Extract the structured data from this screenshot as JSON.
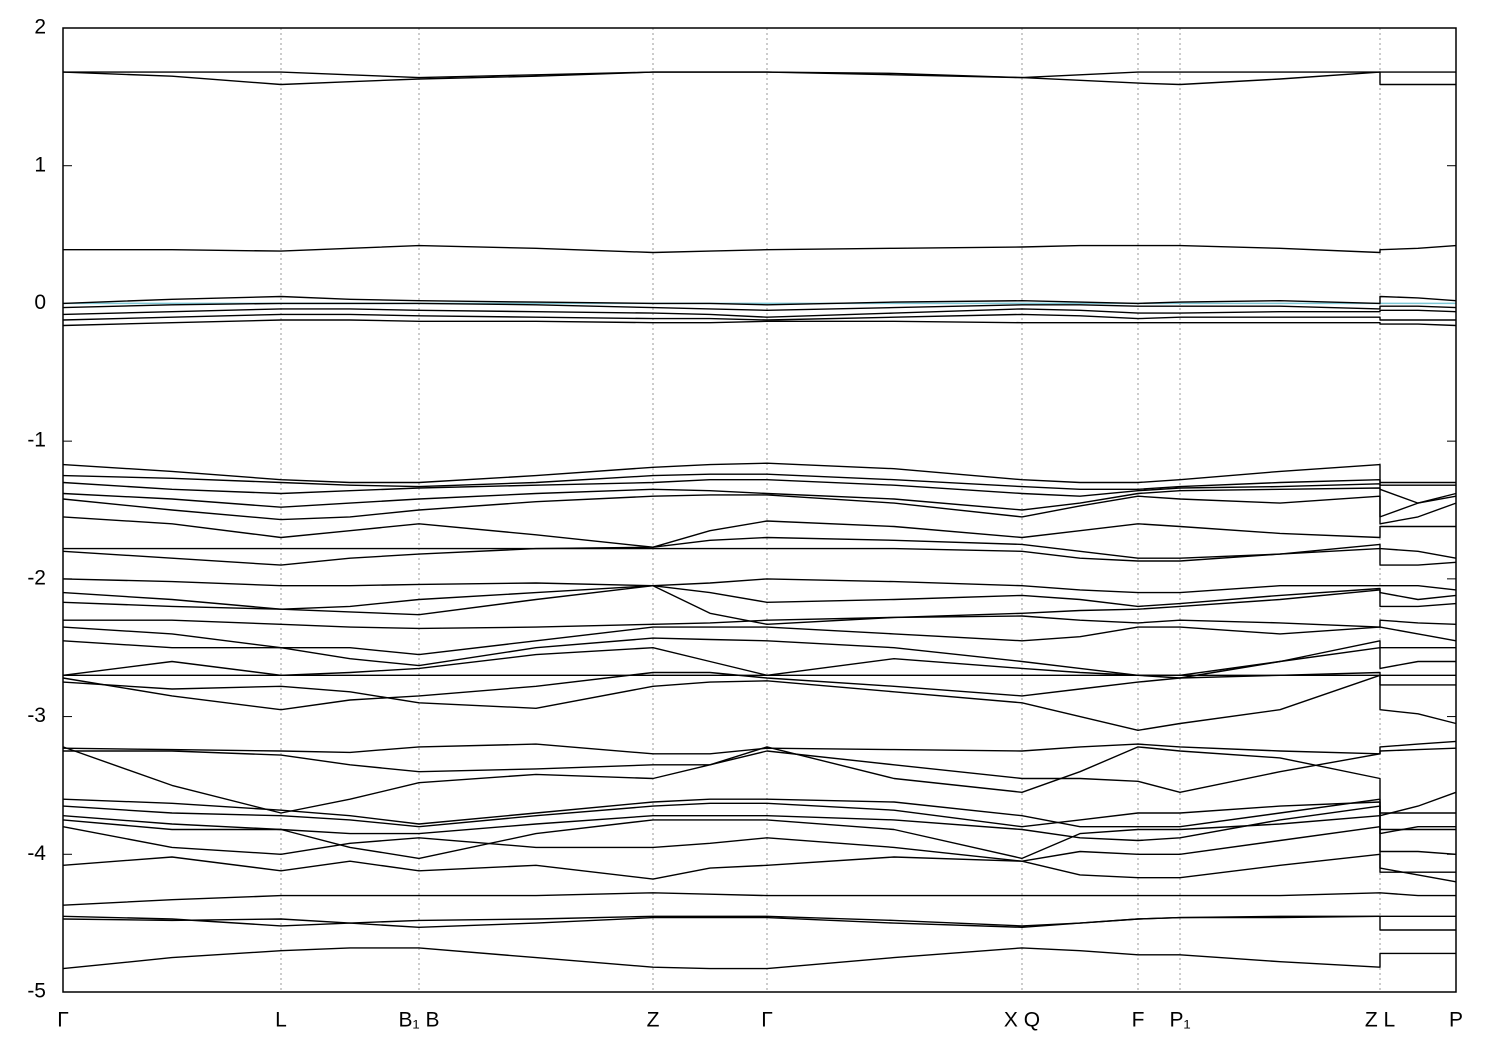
{
  "chart_data": {
    "type": "line",
    "xlim": [
      0,
      1393
    ],
    "xticks": [
      {
        "value": 0,
        "label": "Γ"
      },
      {
        "value": 218,
        "label": "L"
      },
      {
        "value": 356,
        "label": "B₁ B"
      },
      {
        "value": 590,
        "label": "Z"
      },
      {
        "value": 704,
        "label": "Γ"
      },
      {
        "value": 959,
        "label": "X Q"
      },
      {
        "value": 1075,
        "label": "F"
      },
      {
        "value": 1117,
        "label": "P₁"
      },
      {
        "value": 1317,
        "label": "Z L"
      },
      {
        "value": 1393,
        "label": "P"
      }
    ],
    "ylim": [
      -5,
      2
    ],
    "yticks": [
      -5,
      -4,
      -3,
      -2,
      -1,
      0,
      1,
      2
    ],
    "grid": "x",
    "color": "#000000",
    "fermi_level": 0,
    "fermi_color": "#7ec8d6",
    "x": [
      0,
      109,
      218,
      287,
      356,
      473,
      590,
      647,
      704,
      831,
      959,
      1017,
      1075,
      1117,
      1217,
      1317,
      1317,
      1355,
      1393
    ],
    "series": [
      {
        "values": [
          1.68,
          1.68,
          1.68,
          1.66,
          1.64,
          1.66,
          1.68,
          1.68,
          1.68,
          1.67,
          1.64,
          1.66,
          1.68,
          1.68,
          1.68,
          1.68,
          1.68,
          1.68,
          1.68
        ]
      },
      {
        "values": [
          1.68,
          1.65,
          1.59,
          1.61,
          1.63,
          1.65,
          1.68,
          1.68,
          1.68,
          1.66,
          1.64,
          1.62,
          1.6,
          1.59,
          1.63,
          1.68,
          1.59,
          1.59,
          1.59
        ]
      },
      {
        "values": [
          0.39,
          0.39,
          0.38,
          0.4,
          0.42,
          0.4,
          0.37,
          0.38,
          0.39,
          0.4,
          0.41,
          0.42,
          0.42,
          0.42,
          0.4,
          0.37,
          0.39,
          0.4,
          0.42
        ]
      },
      {
        "values": [
          0,
          0.03,
          0.05,
          0.03,
          0.02,
          0.01,
          0,
          0,
          -0.01,
          0.01,
          0.02,
          0.01,
          0,
          0.01,
          0.02,
          0,
          0.05,
          0.04,
          0.02
        ]
      },
      {
        "values": [
          -0.03,
          -0.01,
          0,
          0,
          0,
          -0.01,
          -0.03,
          -0.04,
          -0.05,
          -0.03,
          -0.01,
          -0.01,
          -0.02,
          -0.02,
          -0.02,
          -0.04,
          -0.02,
          -0.02,
          -0.03
        ]
      },
      {
        "values": [
          -0.08,
          -0.06,
          -0.04,
          -0.04,
          -0.05,
          -0.06,
          -0.07,
          -0.08,
          -0.1,
          -0.07,
          -0.04,
          -0.05,
          -0.07,
          -0.07,
          -0.06,
          -0.06,
          -0.05,
          -0.05,
          -0.06
        ]
      },
      {
        "values": [
          -0.12,
          -0.1,
          -0.08,
          -0.08,
          -0.09,
          -0.1,
          -0.11,
          -0.11,
          -0.12,
          -0.1,
          -0.08,
          -0.09,
          -0.11,
          -0.1,
          -0.1,
          -0.1,
          -0.12,
          -0.12,
          -0.12
        ]
      },
      {
        "values": [
          -0.16,
          -0.14,
          -0.12,
          -0.12,
          -0.13,
          -0.13,
          -0.14,
          -0.14,
          -0.13,
          -0.13,
          -0.14,
          -0.14,
          -0.14,
          -0.14,
          -0.14,
          -0.14,
          -0.15,
          -0.15,
          -0.16
        ]
      },
      {
        "values": [
          -1.17,
          -1.22,
          -1.28,
          -1.3,
          -1.3,
          -1.25,
          -1.19,
          -1.17,
          -1.16,
          -1.2,
          -1.28,
          -1.3,
          -1.3,
          -1.28,
          -1.22,
          -1.17,
          -1.3,
          -1.3,
          -1.3
        ]
      },
      {
        "values": [
          -1.25,
          -1.27,
          -1.3,
          -1.32,
          -1.33,
          -1.3,
          -1.25,
          -1.24,
          -1.24,
          -1.28,
          -1.33,
          -1.35,
          -1.35,
          -1.33,
          -1.3,
          -1.28,
          -1.32,
          -1.32,
          -1.32
        ]
      },
      {
        "values": [
          -1.3,
          -1.35,
          -1.38,
          -1.36,
          -1.34,
          -1.32,
          -1.3,
          -1.28,
          -1.28,
          -1.32,
          -1.38,
          -1.4,
          -1.36,
          -1.34,
          -1.33,
          -1.31,
          -1.35,
          -1.45,
          -1.4
        ]
      },
      {
        "values": [
          -1.38,
          -1.42,
          -1.48,
          -1.45,
          -1.42,
          -1.38,
          -1.35,
          -1.36,
          -1.38,
          -1.42,
          -1.5,
          -1.45,
          -1.38,
          -1.36,
          -1.35,
          -1.34,
          -1.55,
          -1.45,
          -1.38
        ]
      },
      {
        "values": [
          -1.42,
          -1.5,
          -1.57,
          -1.55,
          -1.5,
          -1.44,
          -1.4,
          -1.39,
          -1.39,
          -1.45,
          -1.55,
          -1.47,
          -1.4,
          -1.42,
          -1.45,
          -1.4,
          -1.6,
          -1.55,
          -1.45
        ]
      },
      {
        "values": [
          -1.55,
          -1.6,
          -1.7,
          -1.65,
          -1.6,
          -1.68,
          -1.77,
          -1.65,
          -1.58,
          -1.62,
          -1.7,
          -1.65,
          -1.6,
          -1.62,
          -1.67,
          -1.7,
          -1.62,
          -1.62,
          -1.62
        ]
      },
      {
        "values": [
          -1.78,
          -1.78,
          -1.78,
          -1.78,
          -1.78,
          -1.78,
          -1.78,
          -1.78,
          -1.78,
          -1.78,
          -1.8,
          -1.85,
          -1.87,
          -1.87,
          -1.82,
          -1.75,
          -1.78,
          -1.8,
          -1.85
        ]
      },
      {
        "values": [
          -1.8,
          -1.85,
          -1.9,
          -1.85,
          -1.82,
          -1.78,
          -1.77,
          -1.72,
          -1.7,
          -1.72,
          -1.75,
          -1.8,
          -1.85,
          -1.85,
          -1.82,
          -1.78,
          -1.9,
          -1.9,
          -1.88
        ]
      },
      {
        "values": [
          -2,
          -2.02,
          -2.05,
          -2.05,
          -2.04,
          -2.03,
          -2.05,
          -2.03,
          -2,
          -2.02,
          -2.05,
          -2.08,
          -2.1,
          -2.1,
          -2.05,
          -2.05,
          -2.05,
          -2.05,
          -2.08
        ]
      },
      {
        "values": [
          -2.1,
          -2.15,
          -2.22,
          -2.2,
          -2.15,
          -2.1,
          -2.05,
          -2.1,
          -2.17,
          -2.15,
          -2.12,
          -2.15,
          -2.2,
          -2.18,
          -2.12,
          -2.07,
          -2.1,
          -2.15,
          -2.12
        ]
      },
      {
        "values": [
          -2.17,
          -2.2,
          -2.22,
          -2.24,
          -2.26,
          -2.15,
          -2.05,
          -2.25,
          -2.33,
          -2.28,
          -2.25,
          -2.23,
          -2.22,
          -2.2,
          -2.15,
          -2.08,
          -2.2,
          -2.2,
          -2.18
        ]
      },
      {
        "values": [
          -2.3,
          -2.3,
          -2.33,
          -2.35,
          -2.36,
          -2.35,
          -2.33,
          -2.32,
          -2.3,
          -2.28,
          -2.27,
          -2.3,
          -2.32,
          -2.3,
          -2.32,
          -2.35,
          -2.3,
          -2.32,
          -2.33
        ]
      },
      {
        "values": [
          -2.35,
          -2.4,
          -2.5,
          -2.5,
          -2.55,
          -2.45,
          -2.35,
          -2.35,
          -2.35,
          -2.4,
          -2.45,
          -2.42,
          -2.35,
          -2.35,
          -2.4,
          -2.35,
          -2.35,
          -2.4,
          -2.45
        ]
      },
      {
        "values": [
          -2.45,
          -2.5,
          -2.5,
          -2.58,
          -2.63,
          -2.5,
          -2.43,
          -2.44,
          -2.45,
          -2.5,
          -2.6,
          -2.65,
          -2.7,
          -2.7,
          -2.6,
          -2.45,
          -2.5,
          -2.5,
          -2.5
        ]
      },
      {
        "values": [
          -2.7,
          -2.6,
          -2.7,
          -2.68,
          -2.65,
          -2.55,
          -2.5,
          -2.6,
          -2.7,
          -2.58,
          -2.65,
          -2.68,
          -2.7,
          -2.72,
          -2.6,
          -2.5,
          -2.65,
          -2.6,
          -2.6
        ]
      },
      {
        "values": [
          -2.7,
          -2.7,
          -2.7,
          -2.7,
          -2.7,
          -2.7,
          -2.7,
          -2.7,
          -2.7,
          -2.7,
          -2.7,
          -2.7,
          -2.7,
          -2.7,
          -2.7,
          -2.7,
          -2.7,
          -2.7,
          -2.7
        ]
      },
      {
        "values": [
          -2.72,
          -2.85,
          -2.95,
          -2.88,
          -2.85,
          -2.78,
          -2.68,
          -2.68,
          -2.72,
          -2.78,
          -2.85,
          -2.8,
          -2.75,
          -2.72,
          -2.7,
          -2.68,
          -2.77,
          -2.77,
          -2.77
        ]
      },
      {
        "values": [
          -2.75,
          -2.8,
          -2.78,
          -2.82,
          -2.9,
          -2.94,
          -2.78,
          -2.75,
          -2.74,
          -2.82,
          -2.9,
          -3,
          -3.1,
          -3.05,
          -2.95,
          -2.7,
          -2.95,
          -2.98,
          -3.05
        ]
      },
      {
        "values": [
          -3.23,
          -3.24,
          -3.25,
          -3.26,
          -3.22,
          -3.2,
          -3.27,
          -3.27,
          -3.23,
          -3.24,
          -3.25,
          -3.22,
          -3.2,
          -3.22,
          -3.25,
          -3.27,
          -3.22,
          -3.2,
          -3.18
        ]
      },
      {
        "values": [
          -3.25,
          -3.25,
          -3.28,
          -3.35,
          -3.4,
          -3.38,
          -3.35,
          -3.35,
          -3.25,
          -3.35,
          -3.45,
          -3.45,
          -3.47,
          -3.55,
          -3.4,
          -3.27,
          -3.25,
          -3.24,
          -3.23
        ]
      },
      {
        "values": [
          -3.22,
          -3.5,
          -3.7,
          -3.6,
          -3.48,
          -3.42,
          -3.45,
          -3.35,
          -3.22,
          -3.45,
          -3.55,
          -3.4,
          -3.22,
          -3.25,
          -3.3,
          -3.45,
          -3.72,
          -3.65,
          -3.55
        ]
      },
      {
        "values": [
          -3.6,
          -3.63,
          -3.68,
          -3.72,
          -3.78,
          -3.7,
          -3.62,
          -3.6,
          -3.6,
          -3.62,
          -3.72,
          -3.8,
          -3.8,
          -3.8,
          -3.7,
          -3.6,
          -3.7,
          -3.7,
          -3.7
        ]
      },
      {
        "values": [
          -3.65,
          -3.7,
          -3.72,
          -3.75,
          -3.8,
          -3.72,
          -3.65,
          -3.63,
          -3.63,
          -3.68,
          -3.8,
          -3.75,
          -3.7,
          -3.7,
          -3.65,
          -3.62,
          -3.82,
          -3.82,
          -3.82
        ]
      },
      {
        "values": [
          -3.72,
          -3.78,
          -3.82,
          -3.85,
          -3.85,
          -3.78,
          -3.72,
          -3.72,
          -3.72,
          -3.75,
          -3.82,
          -3.88,
          -3.9,
          -3.88,
          -3.75,
          -3.65,
          -3.85,
          -3.8,
          -3.8
        ]
      },
      {
        "values": [
          -3.75,
          -3.82,
          -3.82,
          -3.95,
          -4.03,
          -3.85,
          -3.75,
          -3.75,
          -3.75,
          -3.82,
          -4.03,
          -3.85,
          -3.82,
          -3.82,
          -3.78,
          -3.72,
          -3.98,
          -3.98,
          -4
        ]
      },
      {
        "values": [
          -3.8,
          -3.95,
          -4,
          -3.92,
          -3.88,
          -3.95,
          -3.95,
          -3.92,
          -3.88,
          -3.95,
          -4.05,
          -3.98,
          -4,
          -4,
          -3.9,
          -3.8,
          -4.1,
          -4.15,
          -4.2
        ]
      },
      {
        "values": [
          -4.08,
          -4.02,
          -4.12,
          -4.05,
          -4.12,
          -4.08,
          -4.18,
          -4.1,
          -4.08,
          -4.02,
          -4.05,
          -4.15,
          -4.17,
          -4.17,
          -4.08,
          -4,
          -4.13,
          -4.13,
          -4.13
        ]
      },
      {
        "values": [
          -4.37,
          -4.33,
          -4.3,
          -4.3,
          -4.3,
          -4.3,
          -4.28,
          -4.29,
          -4.3,
          -4.3,
          -4.3,
          -4.3,
          -4.3,
          -4.3,
          -4.3,
          -4.28,
          -4.28,
          -4.3,
          -4.3
        ]
      },
      {
        "values": [
          -4.45,
          -4.47,
          -4.52,
          -4.5,
          -4.48,
          -4.47,
          -4.45,
          -4.45,
          -4.45,
          -4.48,
          -4.52,
          -4.5,
          -4.47,
          -4.46,
          -4.45,
          -4.45,
          -4.55,
          -4.55,
          -4.55
        ]
      },
      {
        "values": [
          -4.47,
          -4.48,
          -4.47,
          -4.5,
          -4.53,
          -4.5,
          -4.46,
          -4.46,
          -4.46,
          -4.5,
          -4.53,
          -4.5,
          -4.47,
          -4.46,
          -4.46,
          -4.45,
          -4.45,
          -4.45,
          -4.45
        ]
      },
      {
        "values": [
          -4.83,
          -4.75,
          -4.7,
          -4.68,
          -4.68,
          -4.75,
          -4.82,
          -4.83,
          -4.83,
          -4.75,
          -4.68,
          -4.7,
          -4.73,
          -4.73,
          -4.78,
          -4.82,
          -4.72,
          -4.72,
          -4.72
        ]
      }
    ]
  }
}
